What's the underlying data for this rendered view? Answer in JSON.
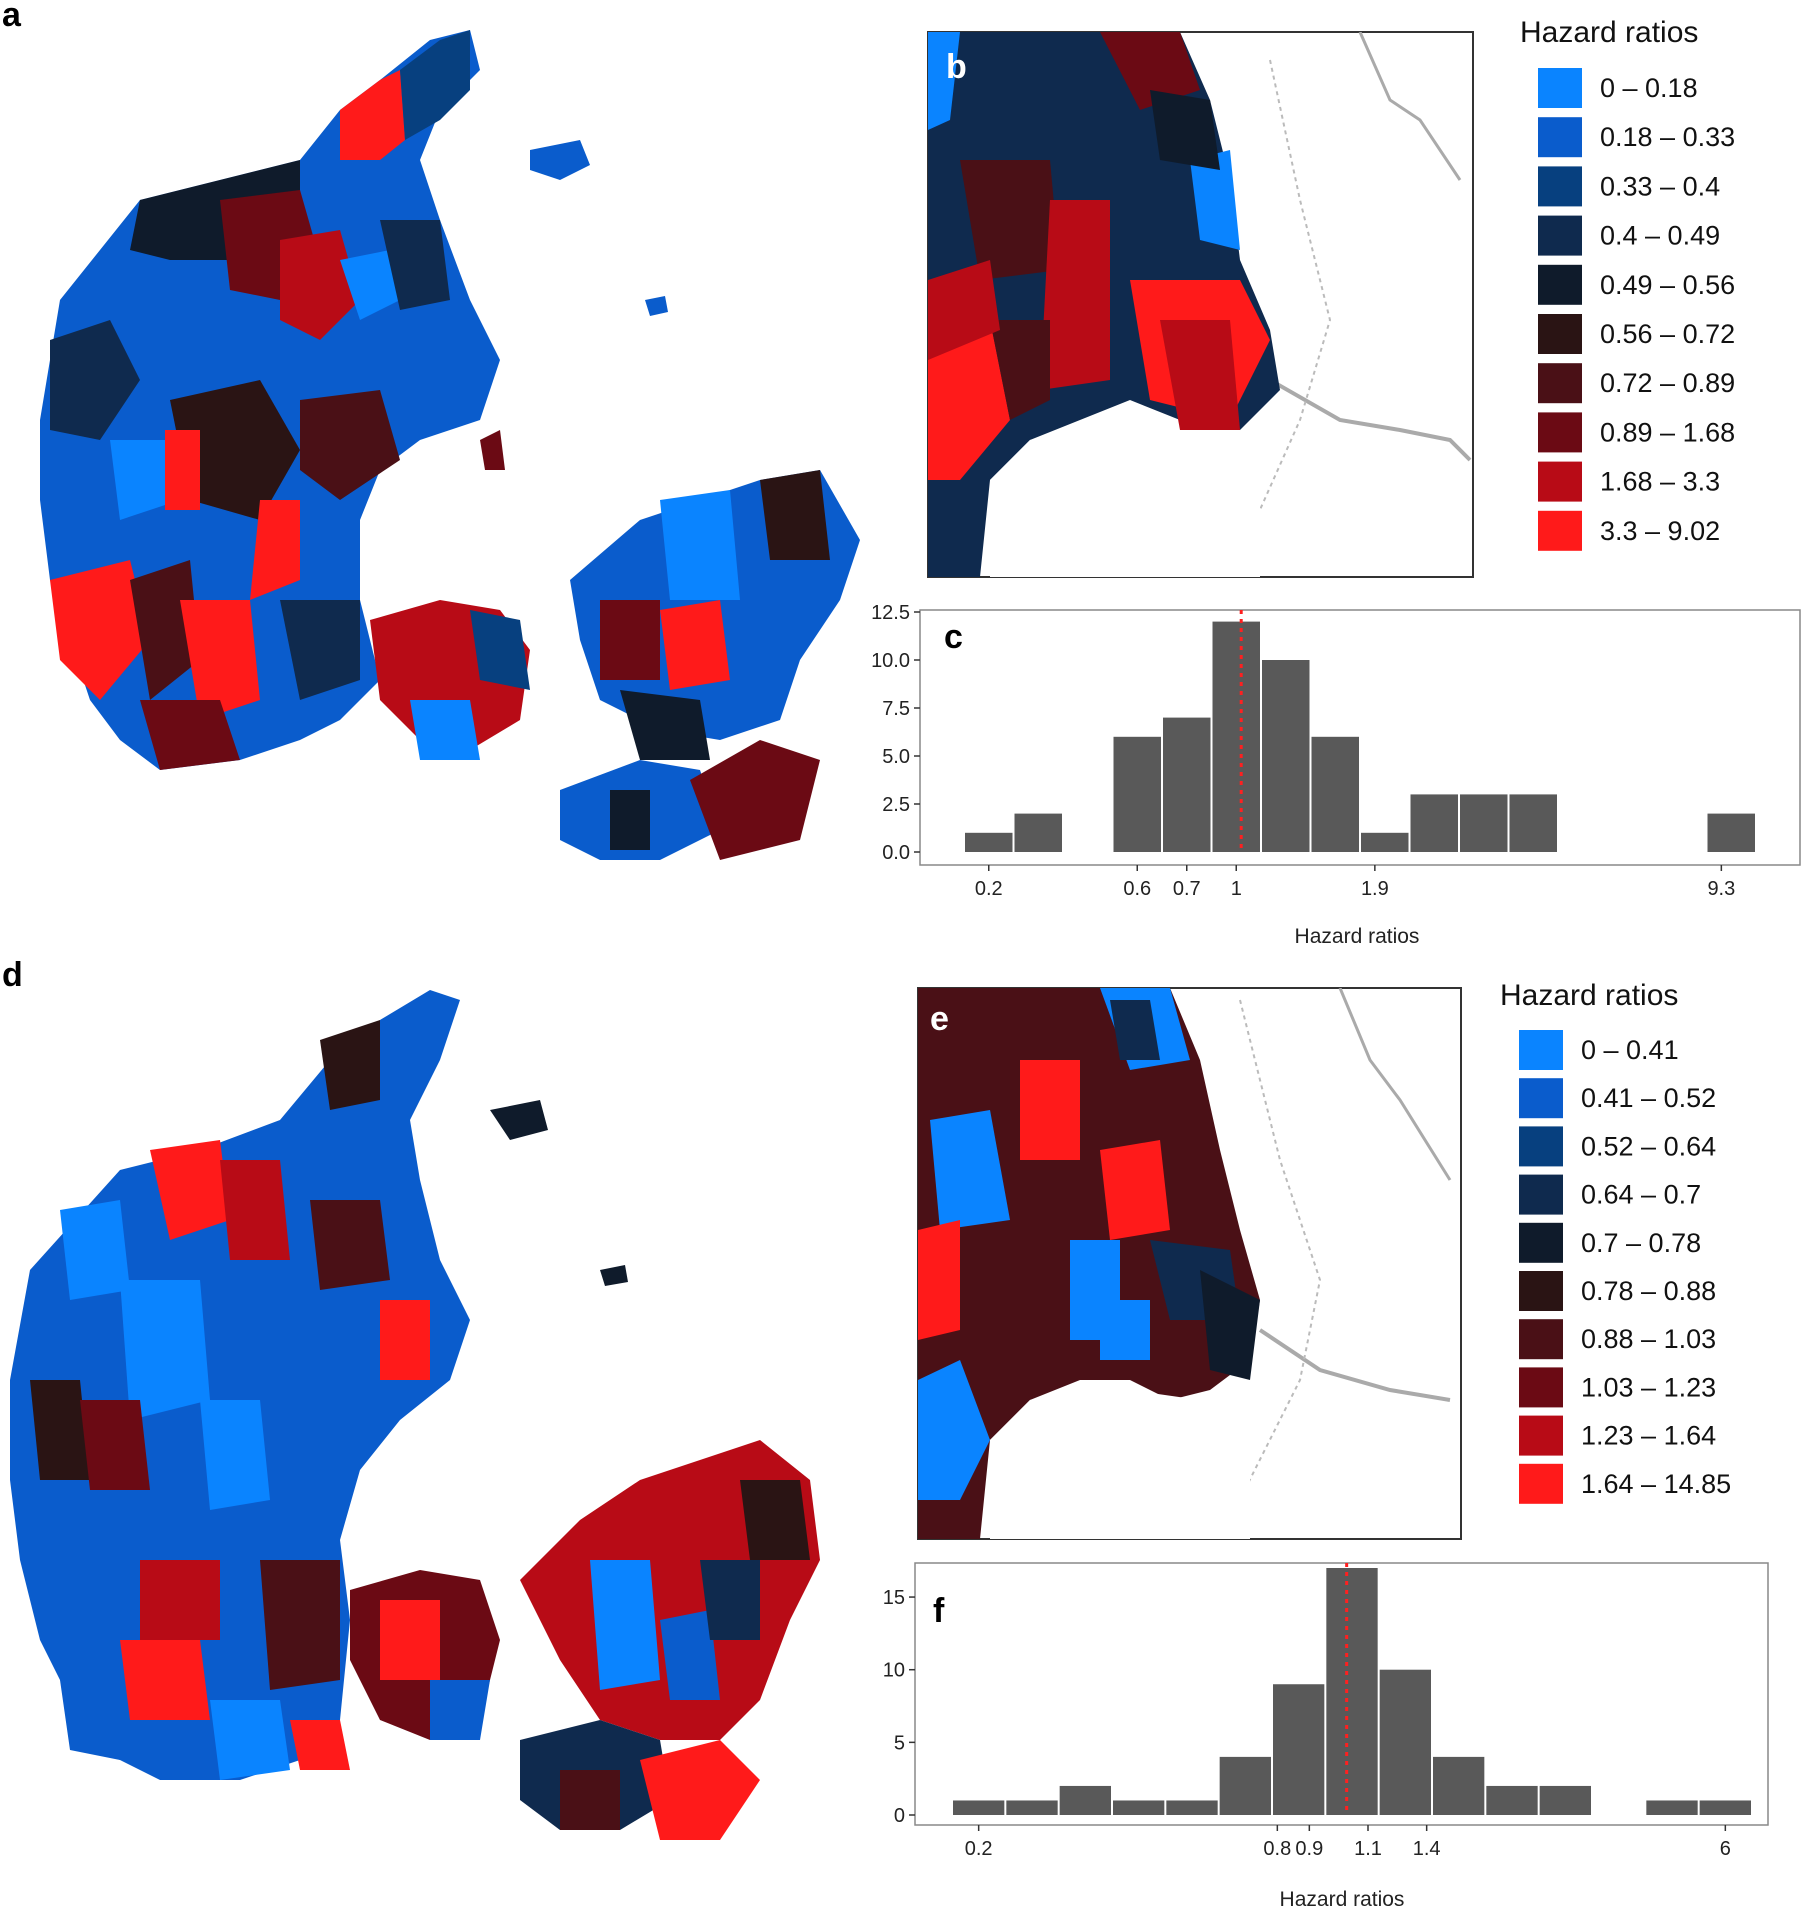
{
  "panels": {
    "a": "a",
    "b": "b",
    "c": "c",
    "d": "d",
    "e": "e",
    "f": "f"
  },
  "colors": {
    "bin_palette": [
      "#0a84ff",
      "#0a5ccc",
      "#07407f",
      "#0f2a4e",
      "#0f1b2b",
      "#2a1414",
      "#4a1016",
      "#6b0a14",
      "#b80b16",
      "#ff1a1a"
    ],
    "bar_fill": "#595959",
    "mean_line": "#ff2020"
  },
  "map_top_legend": {
    "title": "Hazard ratios",
    "labels": [
      "0 – 0.18",
      "0.18 – 0.33",
      "0.33 – 0.4",
      "0.4 – 0.49",
      "0.49 – 0.56",
      "0.56 – 0.72",
      "0.72 – 0.89",
      "0.89 – 1.68",
      "1.68 – 3.3",
      "3.3 – 9.02"
    ]
  },
  "map_bottom_legend": {
    "title": "Hazard ratios",
    "labels": [
      "0 – 0.41",
      "0.41 – 0.52",
      "0.52 – 0.64",
      "0.64 – 0.7",
      "0.7 – 0.78",
      "0.78 – 0.88",
      "0.88 – 1.03",
      "1.03 – 1.23",
      "1.23 – 1.64",
      "1.64 – 14.85"
    ]
  },
  "chart_data": [
    {
      "type": "bar",
      "panel": "c",
      "xlabel": "Hazard ratios",
      "x_tick_labels": [
        "0.2",
        "0.6",
        "0.7",
        "1",
        "1.9",
        "9.3"
      ],
      "y_tick_labels": [
        "0.0",
        "2.5",
        "5.0",
        "7.5",
        "10.0",
        "12.5"
      ],
      "ylim": [
        0,
        12.5
      ],
      "bins": 16,
      "counts": [
        1,
        2,
        0,
        6,
        7,
        12,
        10,
        6,
        1,
        3,
        3,
        3,
        0,
        0,
        0,
        2
      ],
      "x_scale": "log",
      "reference_line": 1,
      "grid": false
    },
    {
      "type": "bar",
      "panel": "f",
      "xlabel": "Hazard ratios",
      "x_tick_labels": [
        "0.2",
        "0.8",
        "0.9",
        "1.1",
        "1.4",
        "6"
      ],
      "y_tick_labels": [
        "0",
        "5",
        "10",
        "15"
      ],
      "ylim": [
        0,
        17
      ],
      "bins": 15,
      "counts": [
        1,
        1,
        2,
        1,
        1,
        4,
        9,
        17,
        10,
        4,
        2,
        2,
        0,
        1,
        1
      ],
      "x_scale": "log",
      "reference_line": 1,
      "grid": false
    }
  ]
}
